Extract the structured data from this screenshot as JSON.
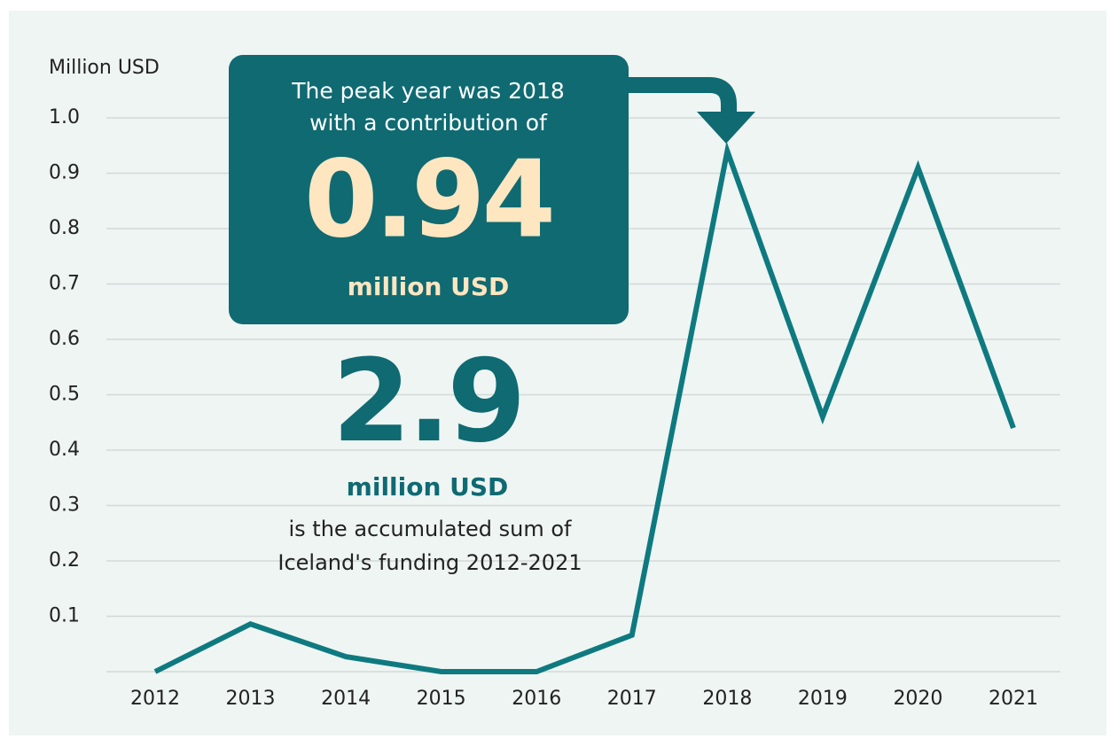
{
  "chart_data": {
    "type": "line",
    "y_label": "Million USD",
    "categories": [
      "2012",
      "2013",
      "2014",
      "2015",
      "2016",
      "2017",
      "2018",
      "2019",
      "2020",
      "2021"
    ],
    "values": [
      0,
      0.086,
      0.027,
      0,
      0,
      0.066,
      0.94,
      0.46,
      0.91,
      0.44
    ],
    "color": "#0e7a80",
    "ylim": [
      0,
      1
    ],
    "yticks": [
      0.1,
      0.2,
      0.3,
      0.4,
      0.5,
      0.6,
      0.7,
      0.8,
      0.9,
      {
        "value": 1,
        "label": "1.0"
      }
    ],
    "grid": true,
    "annotations": {
      "peak": {
        "line1": "The peak year was 2018",
        "line2": "with a contribution of",
        "big": "0.94",
        "unit": "million USD"
      },
      "total": {
        "big": "2.9",
        "unit": "million USD",
        "line1": "is the accumulated sum of",
        "line2": "Iceland's funding 2012-2021"
      }
    }
  }
}
